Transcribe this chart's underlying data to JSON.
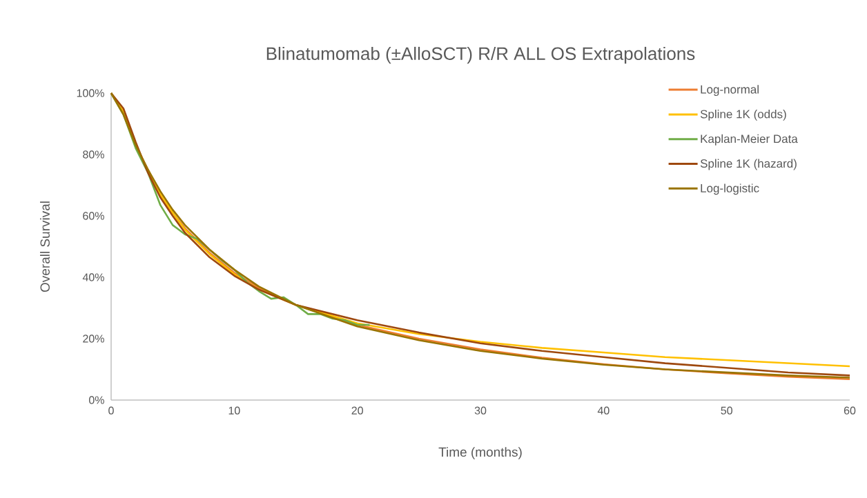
{
  "chart_data": {
    "type": "line",
    "title": "Blinatumomab (±AlloSCT) R/R ALL OS Extrapolations",
    "xlabel": "Time (months)",
    "ylabel": "Overall Survival",
    "x": [
      0,
      1,
      2,
      3,
      4,
      5,
      6,
      8,
      10,
      12,
      15,
      20,
      25,
      30,
      35,
      40,
      45,
      50,
      55,
      60
    ],
    "series": [
      {
        "name": "Log-normal",
        "color": "#ed7d31",
        "values": [
          100,
          94,
          83,
          75,
          67,
          61,
          56,
          48,
          41.5,
          36.5,
          31,
          24.5,
          20,
          16.5,
          13.8,
          11.7,
          10,
          8.7,
          7.6,
          6.8
        ]
      },
      {
        "name": "Spline 1K (odds)",
        "color": "#ffc000",
        "values": [
          100,
          94,
          83,
          74.5,
          67,
          61,
          55.5,
          47.5,
          41,
          36,
          31,
          25,
          21.5,
          19,
          17,
          15.5,
          14,
          13,
          12,
          11
        ]
      },
      {
        "name": "Kaplan-Meier Data",
        "color": "#70ad47",
        "x": [
          0,
          1,
          2,
          3,
          4,
          5,
          6,
          7,
          8,
          9,
          10,
          11,
          12,
          13,
          14,
          15,
          16,
          17,
          18,
          19,
          20,
          21
        ],
        "values": [
          100,
          93,
          82,
          74,
          63.5,
          57,
          54,
          52.5,
          49,
          45.5,
          42.5,
          38.5,
          35.5,
          33,
          33.5,
          31,
          28,
          28,
          26.5,
          26,
          24.5,
          24.5
        ]
      },
      {
        "name": "Spline 1K (hazard)",
        "color": "#9e480e",
        "values": [
          100,
          95,
          84,
          74,
          66,
          60,
          54.5,
          46.5,
          40.5,
          36,
          31,
          26,
          22,
          18.5,
          16,
          14,
          12,
          10.5,
          9,
          8
        ]
      },
      {
        "name": "Log-logistic",
        "color": "#997300",
        "values": [
          100,
          93,
          83,
          75,
          68,
          62,
          57,
          49,
          42.5,
          37,
          31,
          24,
          19.5,
          16,
          13.5,
          11.5,
          10,
          9,
          8,
          7.3
        ]
      }
    ],
    "xlim": [
      0,
      60
    ],
    "ylim": [
      0,
      100
    ],
    "xticks": [
      0,
      10,
      20,
      30,
      40,
      50,
      60
    ],
    "yticks": [
      {
        "value": 0,
        "label": "0%"
      },
      {
        "value": 20,
        "label": "20%"
      },
      {
        "value": 40,
        "label": "40%"
      },
      {
        "value": 60,
        "label": "60%"
      },
      {
        "value": 80,
        "label": "80%"
      },
      {
        "value": 100,
        "label": "100%"
      }
    ],
    "legend": "top right",
    "marker": "none",
    "line_style": "solid"
  }
}
